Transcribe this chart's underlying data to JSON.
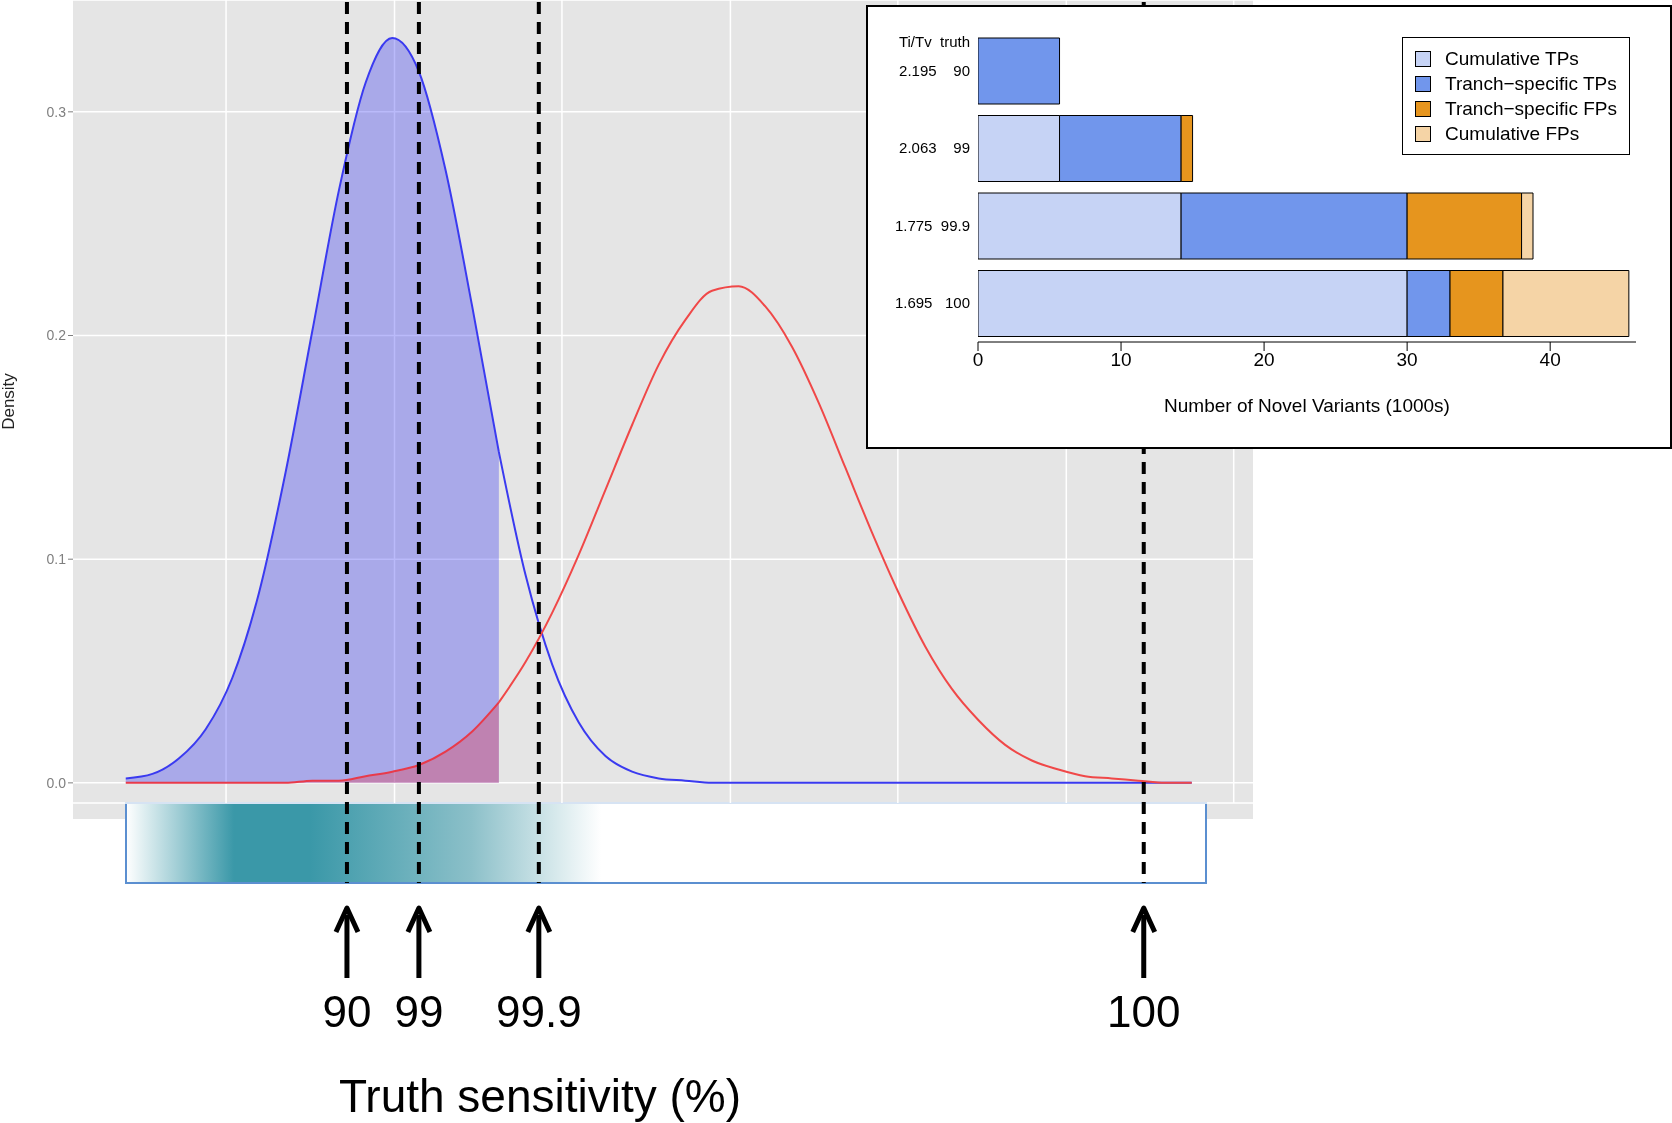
{
  "chart_data": [
    {
      "type": "area",
      "ylabel": "Density",
      "xlabel": "Truth sensitivity (%)",
      "categories": [
        null,
        null,
        null,
        null,
        null,
        null,
        null,
        null,
        null,
        null,
        null,
        null,
        null,
        null,
        null,
        null,
        null,
        null,
        null,
        null,
        null,
        null,
        null,
        null,
        null,
        null,
        null,
        null,
        null,
        null,
        null,
        null,
        null,
        null,
        null,
        null,
        null,
        null,
        null,
        null,
        null
      ],
      "ylim": [
        -0.009,
        0.35
      ],
      "yticks": [
        {
          "value": 0,
          "label": "0.0"
        },
        0.1,
        0.2,
        0.3
      ],
      "grid": true,
      "tick_labels": "y",
      "annotations": [
        "90",
        "99",
        "99.9",
        "100"
      ],
      "series": [
        {
          "type": "area",
          "color": "#3a3af0",
          "values": [
            0.002,
            0.004,
            0.011,
            0.024,
            0.047,
            0.085,
            0.139,
            0.202,
            0.265,
            0.313,
            0.333,
            0.318,
            0.274,
            0.213,
            0.148,
            null,
            null,
            null,
            null,
            null,
            null,
            null,
            null,
            null,
            null,
            null,
            null,
            null,
            null,
            null,
            null,
            null,
            null,
            null,
            null,
            null,
            null,
            null,
            null,
            null,
            null
          ]
        },
        {
          "type": "area",
          "color": "#e83a4a",
          "values": [
            0,
            0,
            0,
            0,
            0,
            0,
            0,
            0.001,
            0.001,
            0.003,
            0.005,
            0.008,
            0.014,
            0.023,
            0.036,
            null,
            null,
            null,
            null,
            null,
            null,
            null,
            null,
            null,
            null,
            null,
            null,
            null,
            null,
            null,
            null,
            null,
            null,
            null,
            null,
            null,
            null,
            null,
            null,
            null,
            null
          ]
        },
        {
          "type": "line",
          "color": "#3a3af0",
          "values": [
            null,
            null,
            null,
            null,
            null,
            null,
            null,
            null,
            null,
            null,
            null,
            null,
            null,
            null,
            0.148,
            0.093,
            0.053,
            0.027,
            0.012,
            0.005,
            0.002,
            0.001,
            0,
            0,
            0,
            0,
            0,
            0,
            0,
            0,
            0,
            0,
            0,
            0,
            0,
            0,
            0,
            0,
            0,
            0,
            0
          ]
        },
        {
          "type": "line",
          "color": "#f04848",
          "values": [
            null,
            null,
            null,
            null,
            null,
            null,
            null,
            null,
            null,
            null,
            null,
            null,
            null,
            null,
            0.036,
            0.054,
            0.076,
            0.102,
            0.131,
            0.16,
            0.187,
            0.207,
            0.22,
            0.222,
            0.213,
            0.195,
            0.17,
            0.141,
            0.112,
            0.085,
            0.061,
            0.042,
            0.028,
            0.017,
            0.01,
            0.006,
            0.003,
            0.002,
            0.001,
            0,
            0
          ]
        }
      ]
    },
    {
      "type": "bar",
      "orientation": "horizontal",
      "stacked": true,
      "ylabel": "Ti/Tv  truth",
      "xlabel": "Number of Novel Variants (1000s)",
      "categories": [
        "2.195    90",
        "2.063    99",
        "1.775  99.9",
        "1.695   100"
      ],
      "xlim": [
        0,
        46
      ],
      "xticks": [
        0,
        10,
        20,
        30,
        40
      ],
      "legend": "top right",
      "series": [
        {
          "name": "Cumulative TPs",
          "color": "#c6d3f5",
          "values": [
            null,
            5.7,
            14.2,
            30
          ]
        },
        {
          "name": "Tranch−specific TPs",
          "color": "#7196ec",
          "values": [
            5.7,
            8.5,
            15.8,
            3
          ]
        },
        {
          "name": "Tranch−specific FPs",
          "color": "#e6951e",
          "values": [
            null,
            0.8,
            8,
            3.7
          ]
        },
        {
          "name": "Cumulative FPs",
          "color": "#f5d4a6",
          "values": [
            null,
            null,
            0.8,
            8.8
          ]
        }
      ]
    }
  ]
}
